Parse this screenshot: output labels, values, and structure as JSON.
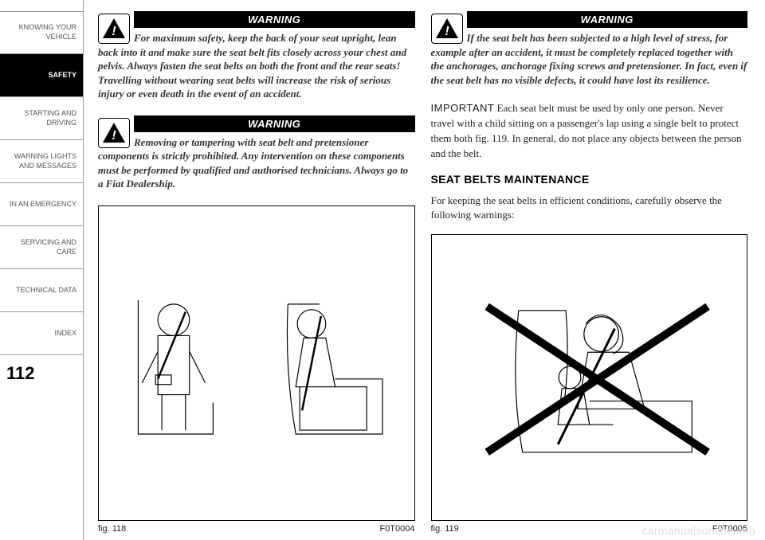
{
  "sidebar": {
    "items": [
      {
        "label": "KNOWING YOUR\nVEHICLE",
        "active": false
      },
      {
        "label": "SAFETY",
        "active": true
      },
      {
        "label": "STARTING AND\nDRIVING",
        "active": false
      },
      {
        "label": "WARNING LIGHTS\nAND MESSAGES",
        "active": false
      },
      {
        "label": "IN AN EMERGENCY",
        "active": false
      },
      {
        "label": "SERVICING AND\nCARE",
        "active": false
      },
      {
        "label": "TECHNICAL DATA",
        "active": false
      },
      {
        "label": "INDEX",
        "active": false
      }
    ]
  },
  "page_number": "112",
  "left_col": {
    "warning1": {
      "title": "WARNING",
      "text": "For maximum safety, keep the back of your seat upright, lean back into it and make sure the seat belt fits closely across your chest and pelvis. Always fasten the seat belts on both the front and the rear seats! Travelling without wearing seat belts will increase the risk of serious injury or even death in the event of an accident."
    },
    "warning2": {
      "title": "WARNING",
      "text": "Removing or tampering with seat belt and pretensioner components is strictly prohibited. Any intervention on these components must be performed by qualified and authorised technicians. Always go to a Fiat Dealership."
    },
    "fig_label": "fig. 118",
    "fig_code": "F0T0004"
  },
  "right_col": {
    "warning1": {
      "title": "WARNING",
      "text": "If the seat belt has been subjected to a high level of stress, for example after an accident, it must be completely replaced together with the anchorages, anchorage fixing screws and pretensioner. In fact, even if the seat belt has no visible defects, it could have lost its resilience."
    },
    "important_label": "IMPORTANT",
    "important_text": " Each seat belt must be used by only one person. Never travel with a child sitting on a passenger's lap using a single belt to protect them both fig. 119. In general, do not place any objects between the person and the belt.",
    "heading": "SEAT BELTS MAINTENANCE",
    "maint_text": "For keeping the seat belts in efficient conditions, carefully observe the following warnings:",
    "fig_label": "fig. 119",
    "fig_code": "F0T0005"
  },
  "watermark": "carmanualsonline.info",
  "colors": {
    "black": "#000000",
    "text": "#333333",
    "border": "#999999",
    "watermark": "#dddddd"
  }
}
